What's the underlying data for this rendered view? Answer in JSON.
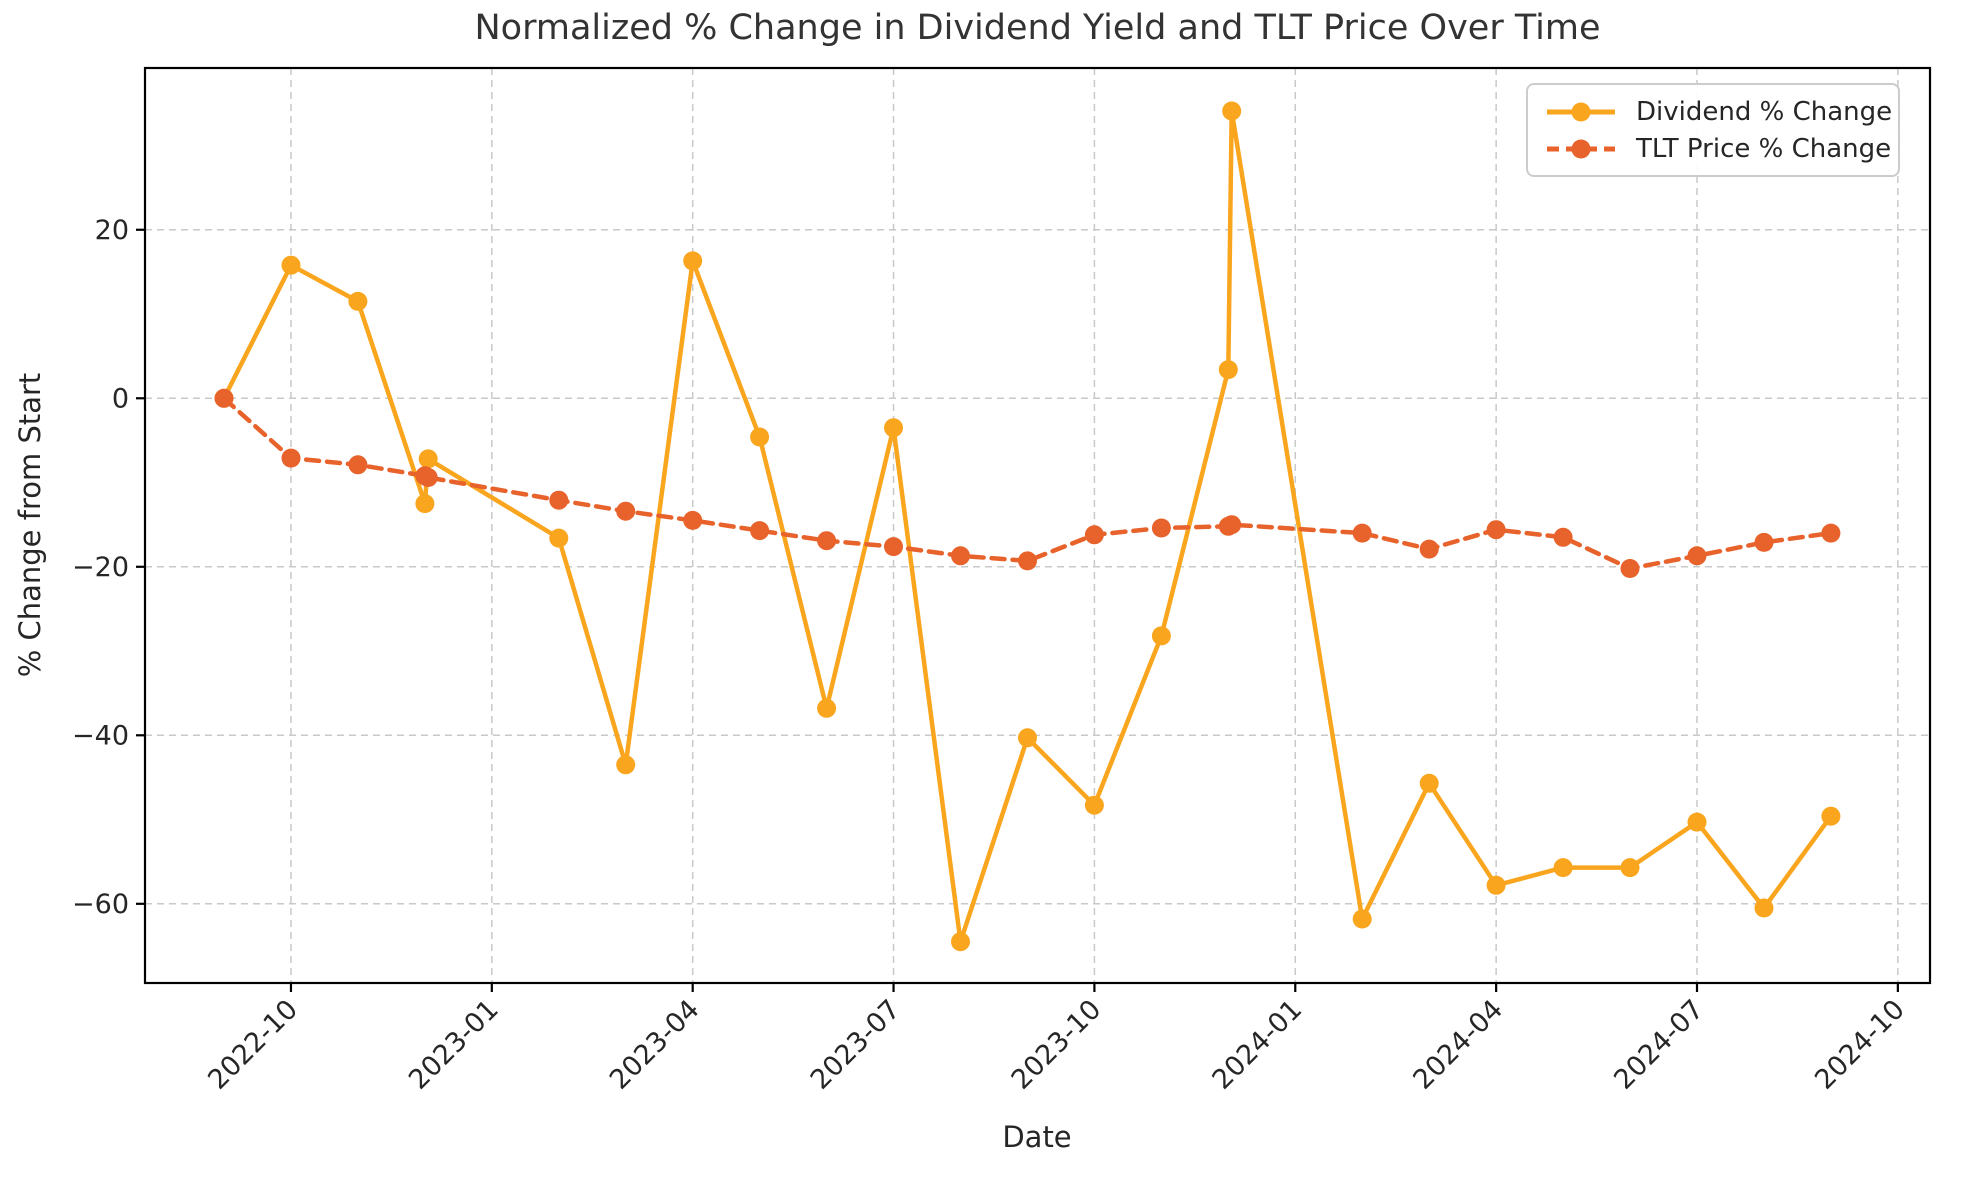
{
  "figure": {
    "title": "Normalized % Change in Dividend Yield and TLT Price Over Time",
    "xlabel": "Date",
    "ylabel": "% Change from Start",
    "background_color": "#ffffff",
    "text_color": "#262626",
    "grid_color": "#c9c9c9",
    "spine_color": "#000000"
  },
  "legend": {
    "position": "top-right",
    "items": [
      {
        "label": "Dividend % Change",
        "color": "#FAA51E",
        "line_style": "solid"
      },
      {
        "label": "TLT Price % Change",
        "color": "#E8622B",
        "line_style": "dashed"
      }
    ]
  },
  "chart_data": {
    "type": "line",
    "title": "Normalized % Change in Dividend Yield and TLT Price Over Time",
    "xlabel": "Date",
    "ylabel": "% Change from Start",
    "grid": true,
    "x_axis_unit": "months from 2022-09",
    "xlim_months": [
      -1.18,
      25.48
    ],
    "ylim": [
      -69.4,
      39.2
    ],
    "x_ticks": [
      {
        "t": 1,
        "label": "2022-10"
      },
      {
        "t": 4,
        "label": "2023-01"
      },
      {
        "t": 7,
        "label": "2023-04"
      },
      {
        "t": 10,
        "label": "2023-07"
      },
      {
        "t": 13,
        "label": "2023-10"
      },
      {
        "t": 16,
        "label": "2024-01"
      },
      {
        "t": 19,
        "label": "2024-04"
      },
      {
        "t": 22,
        "label": "2024-07"
      },
      {
        "t": 25,
        "label": "2024-10"
      }
    ],
    "y_ticks": [
      {
        "v": 20,
        "label": "20"
      },
      {
        "v": 0,
        "label": "0"
      },
      {
        "v": -20,
        "label": "−20"
      },
      {
        "v": -40,
        "label": "−40"
      },
      {
        "v": -60,
        "label": "−60"
      }
    ],
    "dates": [
      "2022-09",
      "2022-10",
      "2022-11",
      "2022-12",
      "2022-12",
      "2023-02",
      "2023-03",
      "2023-04",
      "2023-05",
      "2023-06",
      "2023-07",
      "2023-08",
      "2023-09",
      "2023-10",
      "2023-11",
      "2023-12",
      "2023-12",
      "2024-02",
      "2024-03",
      "2024-04",
      "2024-05",
      "2024-06",
      "2024-07",
      "2024-08",
      "2024-09"
    ],
    "t": [
      0,
      1,
      2,
      3,
      3.05,
      5,
      6,
      7,
      8,
      9,
      10,
      11,
      12,
      13,
      14,
      15,
      15.05,
      17,
      18,
      19,
      20,
      21,
      22,
      23,
      24
    ],
    "series": [
      {
        "name": "Dividend % Change",
        "color": "#FAA51E",
        "line_style": "solid",
        "marker": "circle",
        "values": [
          0.0,
          15.8,
          11.5,
          -12.5,
          -7.2,
          -16.6,
          -43.5,
          16.3,
          -4.6,
          -36.8,
          -3.5,
          -64.5,
          -40.3,
          -48.3,
          -28.2,
          3.4,
          34.1,
          -61.8,
          -45.7,
          -57.8,
          -55.7,
          -55.7,
          -50.3,
          -60.5,
          -49.6
        ]
      },
      {
        "name": "TLT Price % Change",
        "color": "#E8622B",
        "line_style": "dashed",
        "marker": "circle",
        "values": [
          0.0,
          -7.1,
          -7.9,
          -9.2,
          -9.4,
          -12.1,
          -13.4,
          -14.5,
          -15.7,
          -16.9,
          -17.6,
          -18.7,
          -19.3,
          -16.2,
          -15.4,
          -15.2,
          -15.0,
          -16.0,
          -17.9,
          -15.6,
          -16.5,
          -20.2,
          -18.7,
          -17.1,
          -16.0
        ]
      }
    ]
  }
}
